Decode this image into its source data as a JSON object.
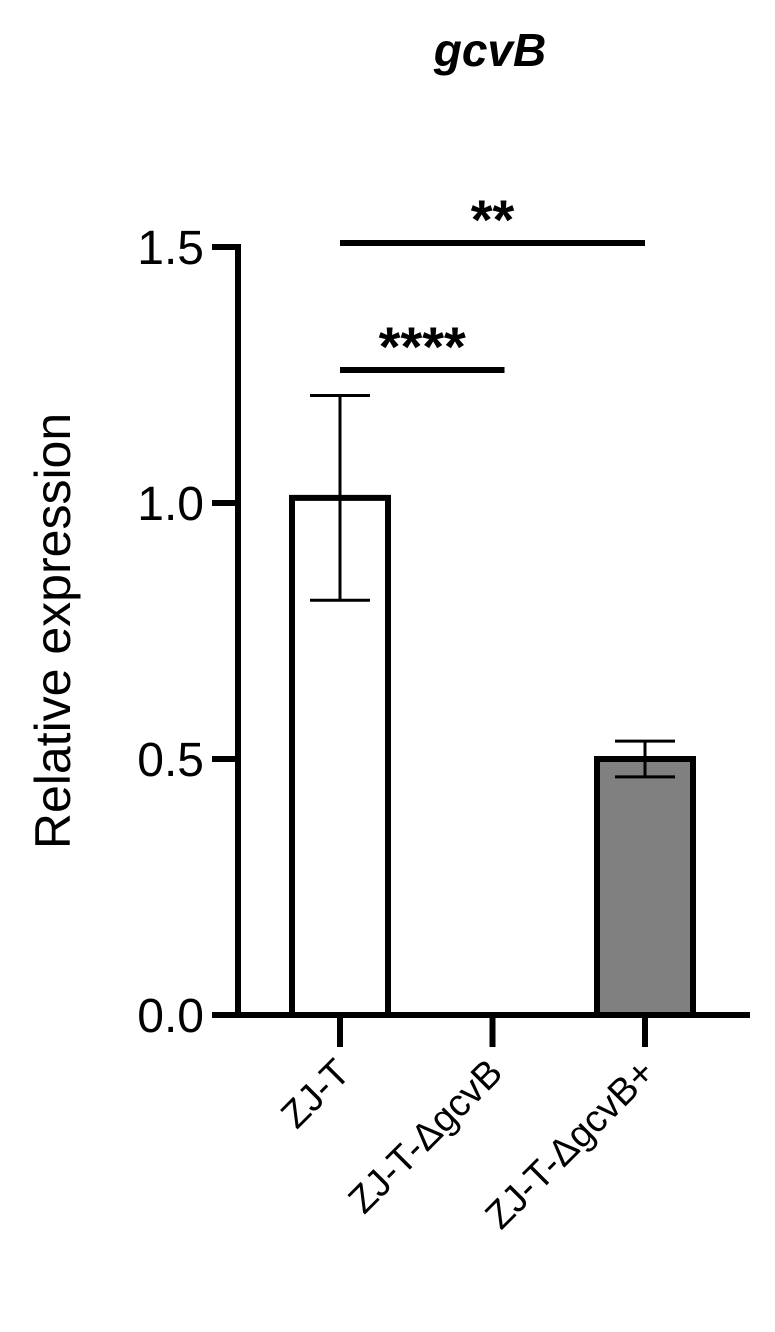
{
  "chart_data": {
    "type": "bar",
    "title": "gcvB",
    "y_label": "Relative expression",
    "categories": [
      "ZJ-T",
      "ZJ-T-ΔgcvB",
      "ZJ-T-ΔgcvB+"
    ],
    "values": [
      1.01,
      0,
      0.5
    ],
    "errors": [
      0.2,
      null,
      0.035
    ],
    "colors": [
      "#ffffff",
      "#ffffff",
      "#808080"
    ],
    "ylim": [
      0,
      1.5
    ],
    "yticks": [
      {
        "value": 0,
        "label": "0.0"
      },
      {
        "value": 0.5,
        "label": "0.5"
      },
      {
        "value": 1,
        "label": "1.0"
      },
      {
        "value": 1.5,
        "label": "1.5"
      }
    ],
    "significance": [
      {
        "from": 0,
        "to": 2,
        "label": "**"
      },
      {
        "from": 0,
        "to": 1,
        "label": "****"
      }
    ]
  }
}
